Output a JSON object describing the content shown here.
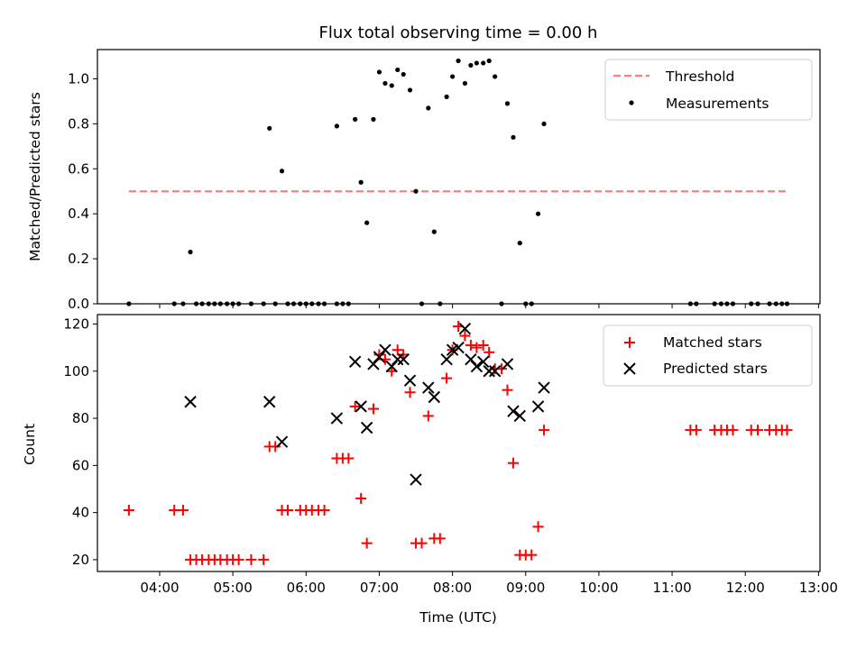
{
  "chart_data": [
    {
      "type": "scatter",
      "title": "Flux total observing time = 0.00 h",
      "xlabel": "",
      "ylabel": "Matched/Predicted stars",
      "xlim": [
        3.15,
        13.02
      ],
      "ylim": [
        0,
        1.13
      ],
      "yticks": [
        {
          "v": 0.0,
          "label": "0.0"
        },
        {
          "v": 0.2,
          "label": "0.2"
        },
        {
          "v": 0.4,
          "label": "0.4"
        },
        {
          "v": 0.6,
          "label": "0.6"
        },
        {
          "v": 0.8,
          "label": "0.8"
        },
        {
          "v": 1.0,
          "label": "1.0"
        }
      ],
      "legend_position": "top-right",
      "threshold": {
        "name": "Threshold",
        "value": 0.5,
        "x_range": [
          3.58,
          12.57
        ],
        "color": "#ff7f7f"
      },
      "measurements": {
        "name": "Measurements",
        "color": "#000000",
        "points": [
          [
            3.58,
            0.0
          ],
          [
            4.2,
            0.0
          ],
          [
            4.32,
            0.0
          ],
          [
            4.42,
            0.23
          ],
          [
            4.5,
            0.0
          ],
          [
            4.58,
            0.0
          ],
          [
            4.67,
            0.0
          ],
          [
            4.75,
            0.0
          ],
          [
            4.83,
            0.0
          ],
          [
            4.92,
            0.0
          ],
          [
            5.0,
            0.0
          ],
          [
            5.08,
            0.0
          ],
          [
            5.25,
            0.0
          ],
          [
            5.42,
            0.0
          ],
          [
            5.5,
            0.78
          ],
          [
            5.58,
            0.0
          ],
          [
            5.67,
            0.59
          ],
          [
            5.75,
            0.0
          ],
          [
            5.83,
            0.0
          ],
          [
            5.92,
            0.0
          ],
          [
            6.0,
            0.0
          ],
          [
            6.08,
            0.0
          ],
          [
            6.17,
            0.0
          ],
          [
            6.25,
            0.0
          ],
          [
            6.42,
            0.79
          ],
          [
            6.42,
            0.0
          ],
          [
            6.5,
            0.0
          ],
          [
            6.58,
            0.0
          ],
          [
            6.67,
            0.82
          ],
          [
            6.75,
            0.54
          ],
          [
            6.83,
            0.36
          ],
          [
            6.92,
            0.82
          ],
          [
            7.0,
            1.03
          ],
          [
            7.08,
            0.98
          ],
          [
            7.17,
            0.97
          ],
          [
            7.25,
            1.04
          ],
          [
            7.33,
            1.02
          ],
          [
            7.42,
            0.95
          ],
          [
            7.5,
            0.5
          ],
          [
            7.58,
            0.0
          ],
          [
            7.67,
            0.87
          ],
          [
            7.75,
            0.32
          ],
          [
            7.83,
            0.0
          ],
          [
            7.92,
            0.92
          ],
          [
            8.0,
            1.01
          ],
          [
            8.08,
            1.08
          ],
          [
            8.17,
            0.98
          ],
          [
            8.25,
            1.06
          ],
          [
            8.33,
            1.07
          ],
          [
            8.42,
            1.07
          ],
          [
            8.5,
            1.08
          ],
          [
            8.58,
            1.01
          ],
          [
            8.67,
            0.0
          ],
          [
            8.75,
            0.89
          ],
          [
            8.83,
            0.74
          ],
          [
            8.92,
            0.27
          ],
          [
            9.0,
            0.0
          ],
          [
            9.08,
            0.0
          ],
          [
            9.17,
            0.4
          ],
          [
            9.25,
            0.8
          ],
          [
            11.25,
            0.0
          ],
          [
            11.33,
            0.0
          ],
          [
            11.58,
            0.0
          ],
          [
            11.67,
            0.0
          ],
          [
            11.75,
            0.0
          ],
          [
            11.83,
            0.0
          ],
          [
            12.08,
            0.0
          ],
          [
            12.17,
            0.0
          ],
          [
            12.33,
            0.0
          ],
          [
            12.42,
            0.0
          ],
          [
            12.5,
            0.0
          ],
          [
            12.57,
            0.0
          ]
        ]
      }
    },
    {
      "type": "scatter",
      "title": "",
      "xlabel": "Time (UTC)",
      "ylabel": "Count",
      "xlim": [
        3.15,
        13.02
      ],
      "ylim": [
        15,
        124
      ],
      "xticks": [
        {
          "v": 4,
          "label": "04:00"
        },
        {
          "v": 5,
          "label": "05:00"
        },
        {
          "v": 6,
          "label": "06:00"
        },
        {
          "v": 7,
          "label": "07:00"
        },
        {
          "v": 8,
          "label": "08:00"
        },
        {
          "v": 9,
          "label": "09:00"
        },
        {
          "v": 10,
          "label": "10:00"
        },
        {
          "v": 11,
          "label": "11:00"
        },
        {
          "v": 12,
          "label": "12:00"
        },
        {
          "v": 13,
          "label": "13:00"
        }
      ],
      "yticks": [
        {
          "v": 20,
          "label": "20"
        },
        {
          "v": 40,
          "label": "40"
        },
        {
          "v": 60,
          "label": "60"
        },
        {
          "v": 80,
          "label": "80"
        },
        {
          "v": 100,
          "label": "100"
        },
        {
          "v": 120,
          "label": "120"
        }
      ],
      "legend_position": "top-right",
      "series": [
        {
          "name": "Matched stars",
          "marker": "plus",
          "color": "#ff0000",
          "points": [
            [
              3.58,
              41
            ],
            [
              4.2,
              41
            ],
            [
              4.32,
              41
            ],
            [
              4.42,
              20
            ],
            [
              4.5,
              20
            ],
            [
              4.58,
              20
            ],
            [
              4.67,
              20
            ],
            [
              4.75,
              20
            ],
            [
              4.83,
              20
            ],
            [
              4.92,
              20
            ],
            [
              5.0,
              20
            ],
            [
              5.08,
              20
            ],
            [
              5.25,
              20
            ],
            [
              5.42,
              20
            ],
            [
              5.5,
              68
            ],
            [
              5.58,
              68
            ],
            [
              5.67,
              41
            ],
            [
              5.75,
              41
            ],
            [
              5.92,
              41
            ],
            [
              6.0,
              41
            ],
            [
              6.08,
              41
            ],
            [
              6.17,
              41
            ],
            [
              6.25,
              41
            ],
            [
              6.42,
              63
            ],
            [
              6.5,
              63
            ],
            [
              6.58,
              63
            ],
            [
              6.67,
              85
            ],
            [
              6.75,
              46
            ],
            [
              6.83,
              27
            ],
            [
              6.92,
              84
            ],
            [
              7.0,
              107
            ],
            [
              7.08,
              105
            ],
            [
              7.17,
              100
            ],
            [
              7.25,
              109
            ],
            [
              7.33,
              107
            ],
            [
              7.42,
              91
            ],
            [
              7.5,
              27
            ],
            [
              7.58,
              27
            ],
            [
              7.67,
              81
            ],
            [
              7.75,
              29
            ],
            [
              7.83,
              29
            ],
            [
              7.92,
              97
            ],
            [
              8.0,
              109
            ],
            [
              8.08,
              119
            ],
            [
              8.17,
              115
            ],
            [
              8.25,
              111
            ],
            [
              8.33,
              110
            ],
            [
              8.42,
              111
            ],
            [
              8.5,
              108
            ],
            [
              8.58,
              101
            ],
            [
              8.67,
              101
            ],
            [
              8.75,
              92
            ],
            [
              8.83,
              61
            ],
            [
              8.92,
              22
            ],
            [
              9.0,
              22
            ],
            [
              9.08,
              22
            ],
            [
              9.17,
              34
            ],
            [
              9.25,
              75
            ],
            [
              11.25,
              75
            ],
            [
              11.33,
              75
            ],
            [
              11.58,
              75
            ],
            [
              11.67,
              75
            ],
            [
              11.75,
              75
            ],
            [
              11.83,
              75
            ],
            [
              12.08,
              75
            ],
            [
              12.17,
              75
            ],
            [
              12.33,
              75
            ],
            [
              12.42,
              75
            ],
            [
              12.5,
              75
            ],
            [
              12.57,
              75
            ]
          ]
        },
        {
          "name": "Predicted stars",
          "marker": "x",
          "color": "#000000",
          "points": [
            [
              4.42,
              87
            ],
            [
              5.5,
              87
            ],
            [
              5.67,
              70
            ],
            [
              6.42,
              80
            ],
            [
              6.67,
              104
            ],
            [
              6.75,
              85
            ],
            [
              6.83,
              76
            ],
            [
              6.92,
              103
            ],
            [
              7.0,
              106
            ],
            [
              7.08,
              109
            ],
            [
              7.17,
              102
            ],
            [
              7.25,
              105
            ],
            [
              7.33,
              105
            ],
            [
              7.42,
              96
            ],
            [
              7.5,
              54
            ],
            [
              7.67,
              93
            ],
            [
              7.75,
              89
            ],
            [
              7.92,
              105
            ],
            [
              8.0,
              109
            ],
            [
              8.08,
              110
            ],
            [
              8.17,
              118
            ],
            [
              8.25,
              105
            ],
            [
              8.33,
              102
            ],
            [
              8.42,
              104
            ],
            [
              8.5,
              100
            ],
            [
              8.58,
              100
            ],
            [
              8.75,
              103
            ],
            [
              8.83,
              83
            ],
            [
              8.92,
              81
            ],
            [
              9.17,
              85
            ],
            [
              9.25,
              93
            ]
          ]
        }
      ]
    }
  ]
}
